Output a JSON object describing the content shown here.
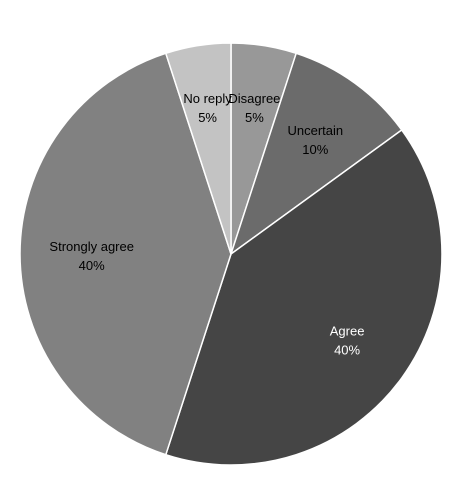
{
  "chart_data": {
    "type": "pie",
    "title": "",
    "start_angle_deg": 0,
    "direction": "clockwise",
    "slices": [
      {
        "key": "disagree",
        "label": "Disagree",
        "value": 5,
        "display": "5%",
        "color": "#989898",
        "text_color": "#000000"
      },
      {
        "key": "uncertain",
        "label": "Uncertain",
        "value": 10,
        "display": "10%",
        "color": "#6b6b6b",
        "text_color": "#000000"
      },
      {
        "key": "agree",
        "label": "Agree",
        "value": 40,
        "display": "40%",
        "color": "#454545",
        "text_color": "#ffffff"
      },
      {
        "key": "strongly-agree",
        "label": "Strongly agree",
        "value": 40,
        "display": "40%",
        "color": "#818181",
        "text_color": "#000000"
      },
      {
        "key": "no-reply",
        "label": "No reply",
        "value": 5,
        "display": "5%",
        "color": "#c3c3c3",
        "text_color": "#000000"
      }
    ]
  }
}
